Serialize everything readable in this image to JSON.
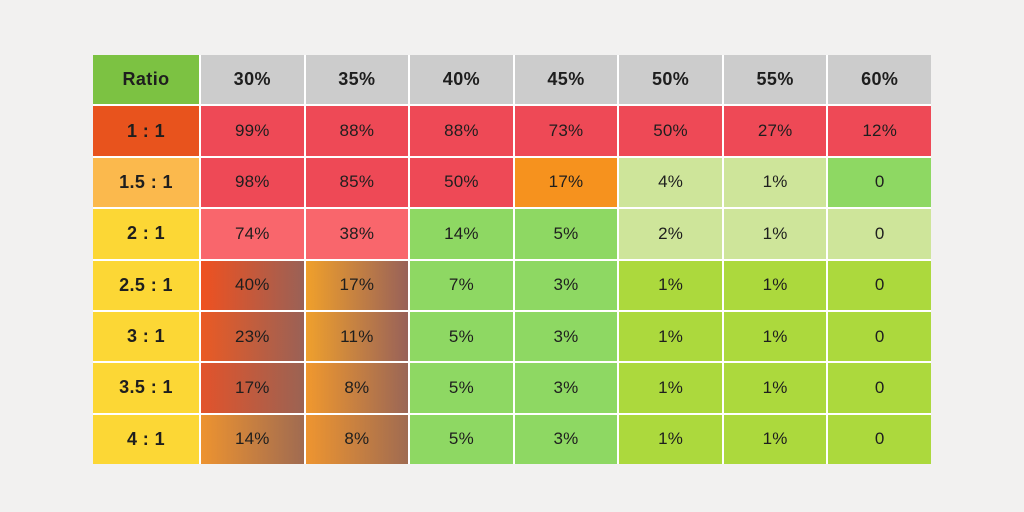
{
  "page": {
    "background": "#f2f1f0",
    "grid_gap_color": "#ffffff",
    "text_color": "#1e1e1e"
  },
  "palette": {
    "header_gray": "#cccccc",
    "header_green": "#7cc242",
    "red": "#ee4956",
    "pink_red": "#f9666c",
    "orange": "#f6921e",
    "pale_green": "#cee59a",
    "medium_green": "#8ed863",
    "yellow_green": "#acd93d",
    "label_vermilion": "#e8531d",
    "label_light_orange": "#fbb94d",
    "label_yellow": "#fcd735"
  },
  "chart_data": {
    "type": "heatmap",
    "title": "",
    "corner_label": "Ratio",
    "corner_bg": "#7cc242",
    "column_header_bg": "#cccccc",
    "columns": [
      "30%",
      "35%",
      "40%",
      "45%",
      "50%",
      "55%",
      "60%"
    ],
    "rows": [
      {
        "label": "1 : 1",
        "label_bg": "#e8531d",
        "cells": [
          {
            "text": "99%",
            "bg": "#ee4956"
          },
          {
            "text": "88%",
            "bg": "#ee4956"
          },
          {
            "text": "88%",
            "bg": "#ee4956"
          },
          {
            "text": "73%",
            "bg": "#ee4956"
          },
          {
            "text": "50%",
            "bg": "#ee4956"
          },
          {
            "text": "27%",
            "bg": "#ee4956"
          },
          {
            "text": "12%",
            "bg": "#ee4956"
          }
        ]
      },
      {
        "label": "1.5 : 1",
        "label_bg": "#fbb94d",
        "cells": [
          {
            "text": "98%",
            "bg": "#ee4956"
          },
          {
            "text": "85%",
            "bg": "#ee4956"
          },
          {
            "text": "50%",
            "bg": "#ee4956"
          },
          {
            "text": "17%",
            "bg": "#f6921e"
          },
          {
            "text": "4%",
            "bg": "#cee59a"
          },
          {
            "text": "1%",
            "bg": "#cee59a"
          },
          {
            "text": "0",
            "bg": "#8ed863"
          }
        ]
      },
      {
        "label": "2 : 1",
        "label_bg": "#fcd735",
        "cells": [
          {
            "text": "74%",
            "bg": "#f9666c"
          },
          {
            "text": "38%",
            "bg": "#f9666c"
          },
          {
            "text": "14%",
            "bg": "#8ed863"
          },
          {
            "text": "5%",
            "bg": "#8ed863"
          },
          {
            "text": "2%",
            "bg": "#cee59a"
          },
          {
            "text": "1%",
            "bg": "#cee59a"
          },
          {
            "text": "0",
            "bg": "#cee59a"
          }
        ]
      },
      {
        "label": "2.5 : 1",
        "label_bg": "#fcd735",
        "cells": [
          {
            "text": "40%",
            "bg": {
              "from": "#ef5120",
              "to": "#9a6156"
            }
          },
          {
            "text": "17%",
            "bg": {
              "from": "#f0a02b",
              "to": "#986159"
            }
          },
          {
            "text": "7%",
            "bg": "#8ed863"
          },
          {
            "text": "3%",
            "bg": "#8ed863"
          },
          {
            "text": "1%",
            "bg": "#acd93d"
          },
          {
            "text": "1%",
            "bg": "#acd93d"
          },
          {
            "text": "0",
            "bg": "#acd93d"
          }
        ]
      },
      {
        "label": "3 : 1",
        "label_bg": "#fcd735",
        "cells": [
          {
            "text": "23%",
            "bg": {
              "from": "#ea5a24",
              "to": "#9a6156"
            }
          },
          {
            "text": "11%",
            "bg": {
              "from": "#efa02d",
              "to": "#986159"
            }
          },
          {
            "text": "5%",
            "bg": "#8ed863"
          },
          {
            "text": "3%",
            "bg": "#8ed863"
          },
          {
            "text": "1%",
            "bg": "#acd93d"
          },
          {
            "text": "1%",
            "bg": "#acd93d"
          },
          {
            "text": "0",
            "bg": "#acd93d"
          }
        ]
      },
      {
        "label": "3.5 : 1",
        "label_bg": "#fcd735",
        "cells": [
          {
            "text": "17%",
            "bg": {
              "from": "#e2532b",
              "to": "#9b6353"
            }
          },
          {
            "text": "8%",
            "bg": {
              "from": "#f0982e",
              "to": "#9a6656"
            }
          },
          {
            "text": "5%",
            "bg": "#8ed863"
          },
          {
            "text": "3%",
            "bg": "#8ed863"
          },
          {
            "text": "1%",
            "bg": "#acd93d"
          },
          {
            "text": "1%",
            "bg": "#acd93d"
          },
          {
            "text": "0",
            "bg": "#acd93d"
          }
        ]
      },
      {
        "label": "4 : 1",
        "label_bg": "#fcd735",
        "cells": [
          {
            "text": "14%",
            "bg": {
              "from": "#ed9330",
              "to": "#a06b51"
            }
          },
          {
            "text": "8%",
            "bg": {
              "from": "#ee9530",
              "to": "#a06b51"
            }
          },
          {
            "text": "5%",
            "bg": "#8ed863"
          },
          {
            "text": "3%",
            "bg": "#8ed863"
          },
          {
            "text": "1%",
            "bg": "#acd93d"
          },
          {
            "text": "1%",
            "bg": "#acd93d"
          },
          {
            "text": "0",
            "bg": "#acd93d"
          }
        ]
      }
    ]
  }
}
